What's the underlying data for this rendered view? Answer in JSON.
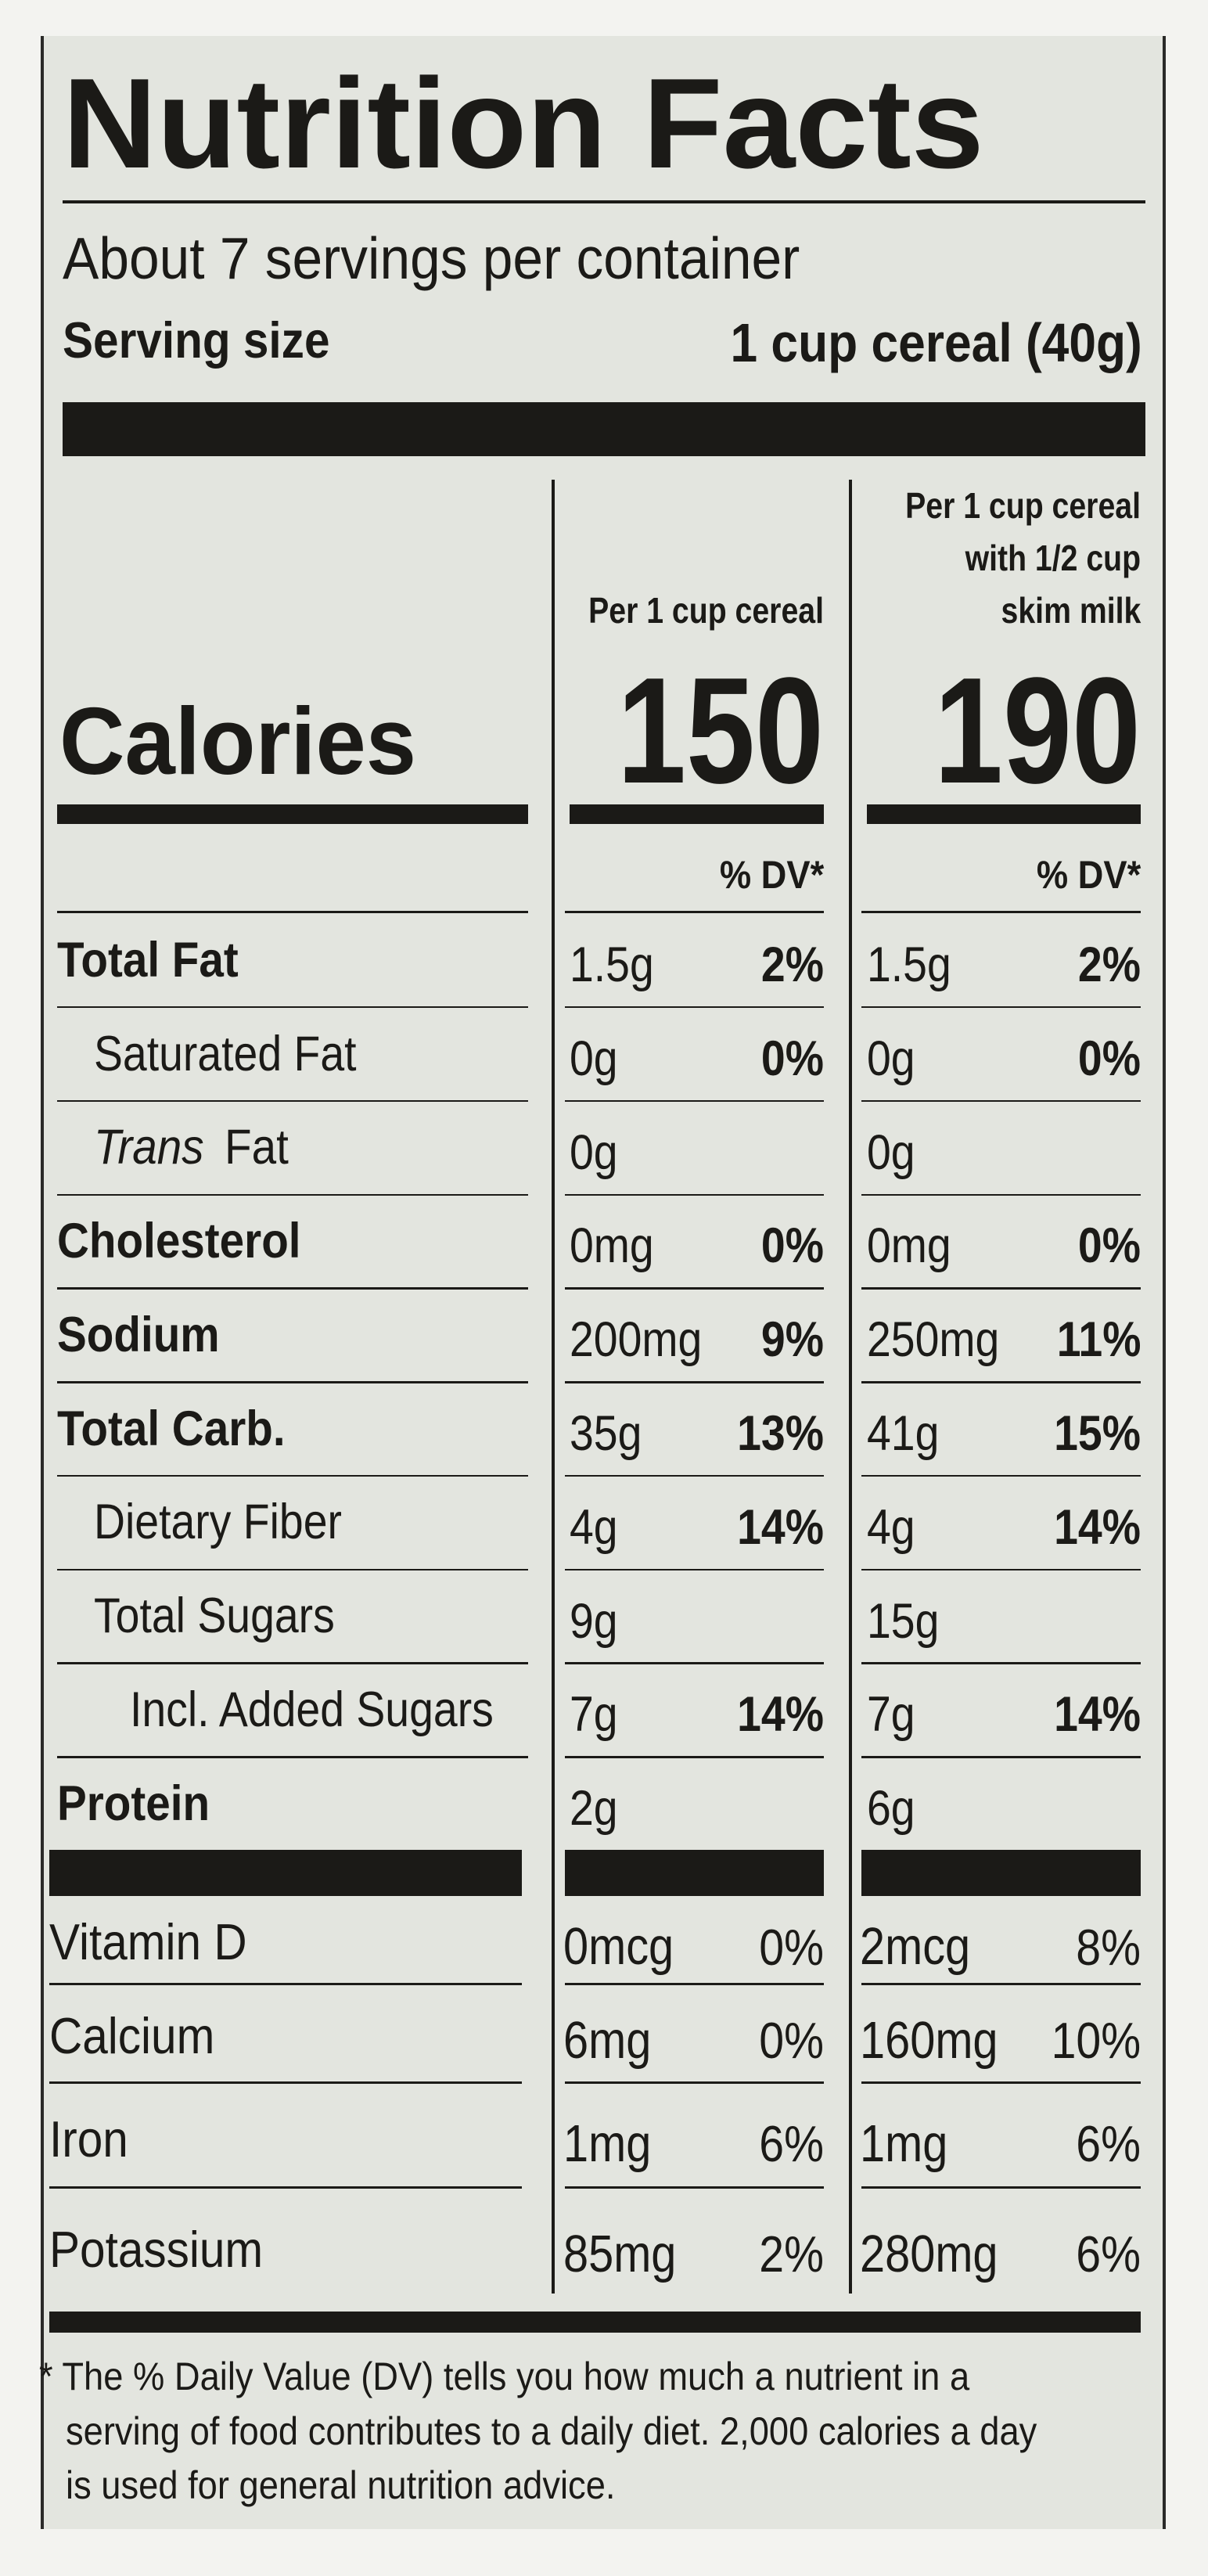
{
  "title": "Nutrition Facts",
  "servings": "About 7 servings per container",
  "serving_size": {
    "label": "Serving size",
    "value": "1 cup cereal (40g)"
  },
  "columns": [
    {
      "header": [
        "Per 1 cup cereal"
      ],
      "calories": "150",
      "dv_header": "% DV*"
    },
    {
      "header": [
        "Per 1 cup cereal",
        "with 1/2 cup",
        "skim milk"
      ],
      "calories": "190",
      "dv_header": "% DV*"
    }
  ],
  "calories_label": "Calories",
  "rows": [
    {
      "name": "Total Fat",
      "bold": true,
      "indent": 0,
      "values": [
        [
          "1.5g",
          "2%"
        ],
        [
          "1.5g",
          "2%"
        ]
      ]
    },
    {
      "name": "Saturated Fat",
      "bold": false,
      "indent": 1,
      "values": [
        [
          "0g",
          "0%"
        ],
        [
          "0g",
          "0%"
        ]
      ]
    },
    {
      "name_italic": "Trans",
      "name": "Fat",
      "bold": false,
      "indent": 1,
      "values": [
        [
          "0g",
          null
        ],
        [
          "0g",
          null
        ]
      ]
    },
    {
      "name": "Cholesterol",
      "bold": true,
      "indent": 0,
      "values": [
        [
          "0mg",
          "0%"
        ],
        [
          "0mg",
          "0%"
        ]
      ]
    },
    {
      "name": "Sodium",
      "bold": true,
      "indent": 0,
      "values": [
        [
          "200mg",
          "9%"
        ],
        [
          "250mg",
          "11%"
        ]
      ]
    },
    {
      "name": "Total Carb.",
      "bold": true,
      "indent": 0,
      "values": [
        [
          "35g",
          "13%"
        ],
        [
          "41g",
          "15%"
        ]
      ]
    },
    {
      "name": "Dietary Fiber",
      "bold": false,
      "indent": 1,
      "values": [
        [
          "4g",
          "14%"
        ],
        [
          "4g",
          "14%"
        ]
      ]
    },
    {
      "name": "Total Sugars",
      "bold": false,
      "indent": 1,
      "values": [
        [
          "9g",
          null
        ],
        [
          "15g",
          null
        ]
      ]
    },
    {
      "name": "Incl. Added Sugars",
      "bold": false,
      "indent": 2,
      "values": [
        [
          "7g",
          "14%"
        ],
        [
          "7g",
          "14%"
        ]
      ]
    },
    {
      "name": "Protein",
      "bold": true,
      "indent": 0,
      "values": [
        [
          "2g",
          null
        ],
        [
          "6g",
          null
        ]
      ]
    }
  ],
  "vitamins": [
    {
      "name": "Vitamin D",
      "values": [
        [
          "0mcg",
          "0%"
        ],
        [
          "2mcg",
          "8%"
        ]
      ]
    },
    {
      "name": "Calcium",
      "values": [
        [
          "6mg",
          "0%"
        ],
        [
          "160mg",
          "10%"
        ]
      ]
    },
    {
      "name": "Iron",
      "values": [
        [
          "1mg",
          "6%"
        ],
        [
          "1mg",
          "6%"
        ]
      ]
    },
    {
      "name": "Potassium",
      "values": [
        [
          "85mg",
          "2%"
        ],
        [
          "280mg",
          "6%"
        ]
      ]
    }
  ],
  "footnote": [
    "* The % Daily Value (DV) tells you how much a nutrient in a",
    "serving of food contributes to a daily diet. 2,000 calories a day",
    "is used for general nutrition advice."
  ]
}
